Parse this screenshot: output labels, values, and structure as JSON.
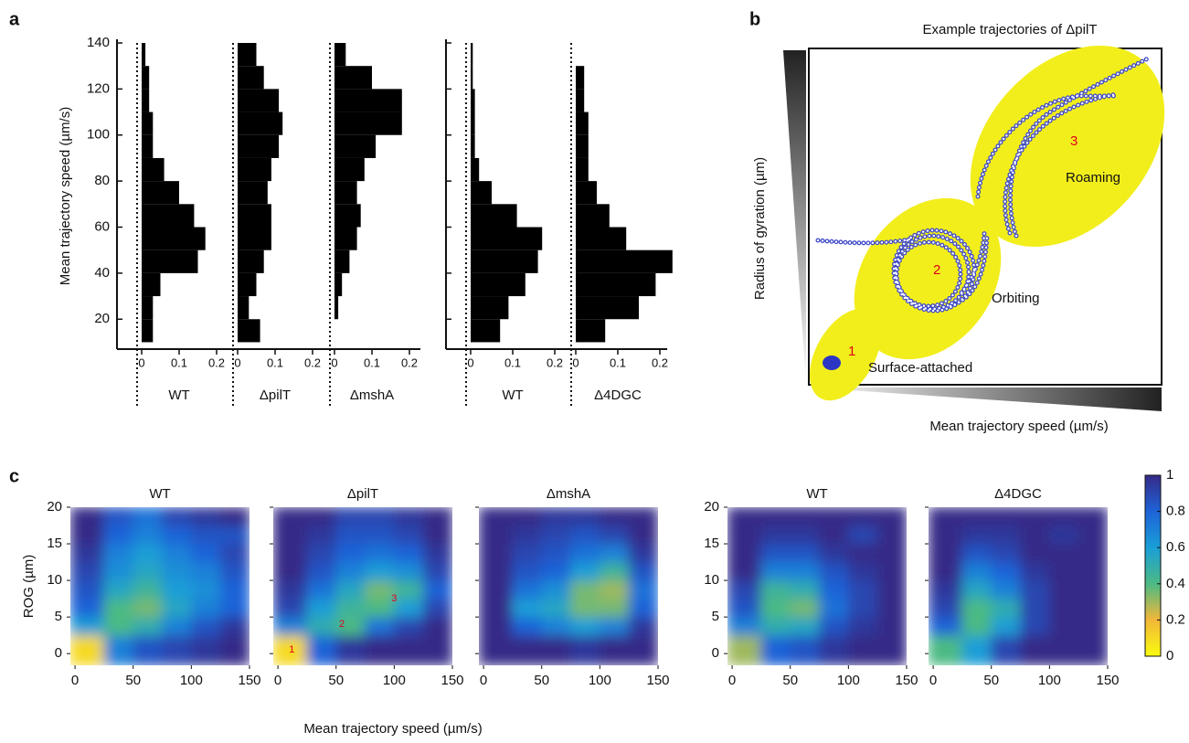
{
  "panel_labels": [
    "a",
    "b",
    "c"
  ],
  "chart_data": [
    {
      "type": "histogram",
      "ylabel": "Mean trajectory speed (µm/s)",
      "ylim": [
        7,
        140
      ],
      "yticks": [
        20,
        40,
        60,
        80,
        100,
        120,
        140
      ],
      "xlim": [
        0,
        0.2
      ],
      "xticks": [
        0,
        0.1,
        0.2
      ],
      "color": "#000000",
      "bins": [
        10,
        20,
        30,
        40,
        50,
        60,
        70,
        80,
        90,
        100,
        110,
        120,
        130,
        140
      ],
      "groups": [
        {
          "y_tick_labels": true,
          "subplots": [
            {
              "name": "WT",
              "counts": [
                0.03,
                0.03,
                0.05,
                0.15,
                0.17,
                0.14,
                0.1,
                0.06,
                0.03,
                0.03,
                0.02,
                0.02,
                0.01
              ]
            },
            {
              "name": "ΔpilT",
              "counts": [
                0.06,
                0.03,
                0.05,
                0.07,
                0.09,
                0.09,
                0.08,
                0.09,
                0.11,
                0.12,
                0.11,
                0.07,
                0.05
              ]
            },
            {
              "name": "ΔmshA",
              "counts": [
                0,
                0.01,
                0.02,
                0.04,
                0.06,
                0.07,
                0.06,
                0.08,
                0.11,
                0.18,
                0.18,
                0.1,
                0.03
              ]
            }
          ]
        },
        {
          "y_tick_labels": false,
          "subplots": [
            {
              "name": "WT",
              "counts": [
                0.07,
                0.09,
                0.13,
                0.16,
                0.17,
                0.11,
                0.05,
                0.02,
                0.01,
                0.01,
                0.01,
                0.005,
                0.005
              ]
            },
            {
              "name": "Δ4DGC",
              "counts": [
                0.07,
                0.15,
                0.19,
                0.23,
                0.12,
                0.08,
                0.05,
                0.03,
                0.03,
                0.03,
                0.02,
                0.02,
                0
              ]
            }
          ]
        }
      ]
    },
    {
      "type": "diagram",
      "title": "Example trajectories of ΔpilT",
      "xlabel": "Mean trajectory speed (µm/s)",
      "ylabel": "Radius of gyration (µm)",
      "regions": [
        {
          "number": "1",
          "label": "Surface-attached"
        },
        {
          "number": "2",
          "label": "Orbiting"
        },
        {
          "number": "3",
          "label": "Roaming"
        }
      ]
    },
    {
      "type": "heatmap",
      "xlabel": "Mean trajectory speed (µm/s)",
      "ylabel": "ROG (µm)",
      "xlim": [
        -4,
        150
      ],
      "ylim": [
        -1.6,
        20
      ],
      "xticks": [
        0,
        50,
        100,
        150
      ],
      "yticks": [
        0,
        5,
        10,
        15,
        20
      ],
      "x_bins": [
        0,
        25,
        50,
        75,
        100,
        125,
        150
      ],
      "y_bins": [
        0,
        2.5,
        5,
        7.5,
        10,
        12.5,
        15,
        17.5,
        20
      ],
      "colorbar": {
        "lim": [
          0,
          1
        ],
        "ticks": [
          0,
          0.2,
          0.4,
          0.6,
          0.8,
          1
        ],
        "colormap": [
          "#f9fb0e",
          "#f2b73a",
          "#4cba84",
          "#1a9ed7",
          "#1e63d8",
          "#352a87"
        ]
      },
      "subplots": [
        {
          "title": "WT",
          "y_tick_labels": true,
          "z": [
            [
              0.1,
              0.7,
              0.85,
              0.9,
              0.95,
              1
            ],
            [
              0.6,
              0.4,
              0.5,
              0.7,
              0.85,
              0.95
            ],
            [
              0.8,
              0.4,
              0.35,
              0.55,
              0.7,
              0.8
            ],
            [
              0.85,
              0.55,
              0.45,
              0.6,
              0.65,
              0.8
            ],
            [
              0.9,
              0.65,
              0.55,
              0.65,
              0.7,
              0.85
            ],
            [
              0.95,
              0.7,
              0.6,
              0.7,
              0.8,
              0.9
            ],
            [
              1,
              0.8,
              0.7,
              0.8,
              0.85,
              0.85
            ],
            [
              1,
              0.85,
              0.75,
              0.9,
              0.95,
              1
            ]
          ]
        },
        {
          "title": "ΔpilT",
          "y_tick_labels": false,
          "z": [
            [
              0.1,
              0.8,
              0.95,
              1,
              1,
              1
            ],
            [
              0.7,
              0.5,
              0.4,
              0.75,
              0.9,
              1
            ],
            [
              0.9,
              0.6,
              0.45,
              0.4,
              0.6,
              0.9
            ],
            [
              0.95,
              0.75,
              0.55,
              0.35,
              0.45,
              0.8
            ],
            [
              1,
              0.85,
              0.7,
              0.6,
              0.65,
              0.9
            ],
            [
              1,
              0.9,
              0.8,
              0.75,
              0.8,
              0.95
            ],
            [
              1,
              0.95,
              0.85,
              0.85,
              0.9,
              1
            ],
            [
              1,
              1,
              0.9,
              0.9,
              0.95,
              1
            ]
          ],
          "annotations": [
            {
              "text": "1",
              "x": 12,
              "y": 0.5
            },
            {
              "text": "2",
              "x": 55,
              "y": 4
            },
            {
              "text": "3",
              "x": 100,
              "y": 7.5
            }
          ]
        },
        {
          "title": "ΔmshA",
          "y_tick_labels": false,
          "z": [
            [
              1,
              1,
              1,
              0.95,
              1,
              1
            ],
            [
              1,
              0.8,
              0.7,
              0.6,
              0.7,
              0.95
            ],
            [
              1,
              0.6,
              0.55,
              0.35,
              0.35,
              0.8
            ],
            [
              1,
              0.75,
              0.65,
              0.35,
              0.3,
              0.75
            ],
            [
              1,
              0.85,
              0.8,
              0.6,
              0.45,
              0.85
            ],
            [
              1,
              0.9,
              0.85,
              0.75,
              0.7,
              0.95
            ],
            [
              1,
              0.95,
              0.9,
              0.85,
              0.9,
              1
            ],
            [
              1,
              1,
              0.95,
              0.95,
              1,
              1
            ]
          ]
        },
        {
          "title": "WT",
          "y_tick_labels": true,
          "z": [
            [
              0.3,
              0.8,
              0.85,
              0.95,
              1,
              1
            ],
            [
              0.7,
              0.5,
              0.55,
              0.85,
              0.95,
              1
            ],
            [
              0.85,
              0.4,
              0.35,
              0.75,
              0.9,
              1
            ],
            [
              0.9,
              0.45,
              0.5,
              0.8,
              0.9,
              1
            ],
            [
              1,
              0.7,
              0.7,
              0.85,
              0.95,
              1
            ],
            [
              1,
              0.85,
              0.85,
              0.95,
              1,
              1
            ],
            [
              1,
              0.95,
              0.95,
              1,
              0.9,
              1
            ],
            [
              1,
              1,
              1,
              1,
              1,
              1
            ]
          ]
        },
        {
          "title": "Δ4DGC",
          "y_tick_labels": false,
          "z": [
            [
              0.4,
              0.6,
              0.9,
              1,
              1,
              1
            ],
            [
              0.8,
              0.4,
              0.6,
              0.9,
              1,
              1
            ],
            [
              0.9,
              0.4,
              0.5,
              0.9,
              1,
              1
            ],
            [
              0.95,
              0.55,
              0.7,
              0.9,
              1,
              1
            ],
            [
              1,
              0.7,
              0.8,
              0.95,
              1,
              1
            ],
            [
              1,
              0.85,
              0.9,
              1,
              1,
              1
            ],
            [
              1,
              0.95,
              0.95,
              1,
              0.95,
              1
            ],
            [
              1,
              1,
              1,
              1,
              1,
              1
            ]
          ]
        }
      ]
    }
  ]
}
